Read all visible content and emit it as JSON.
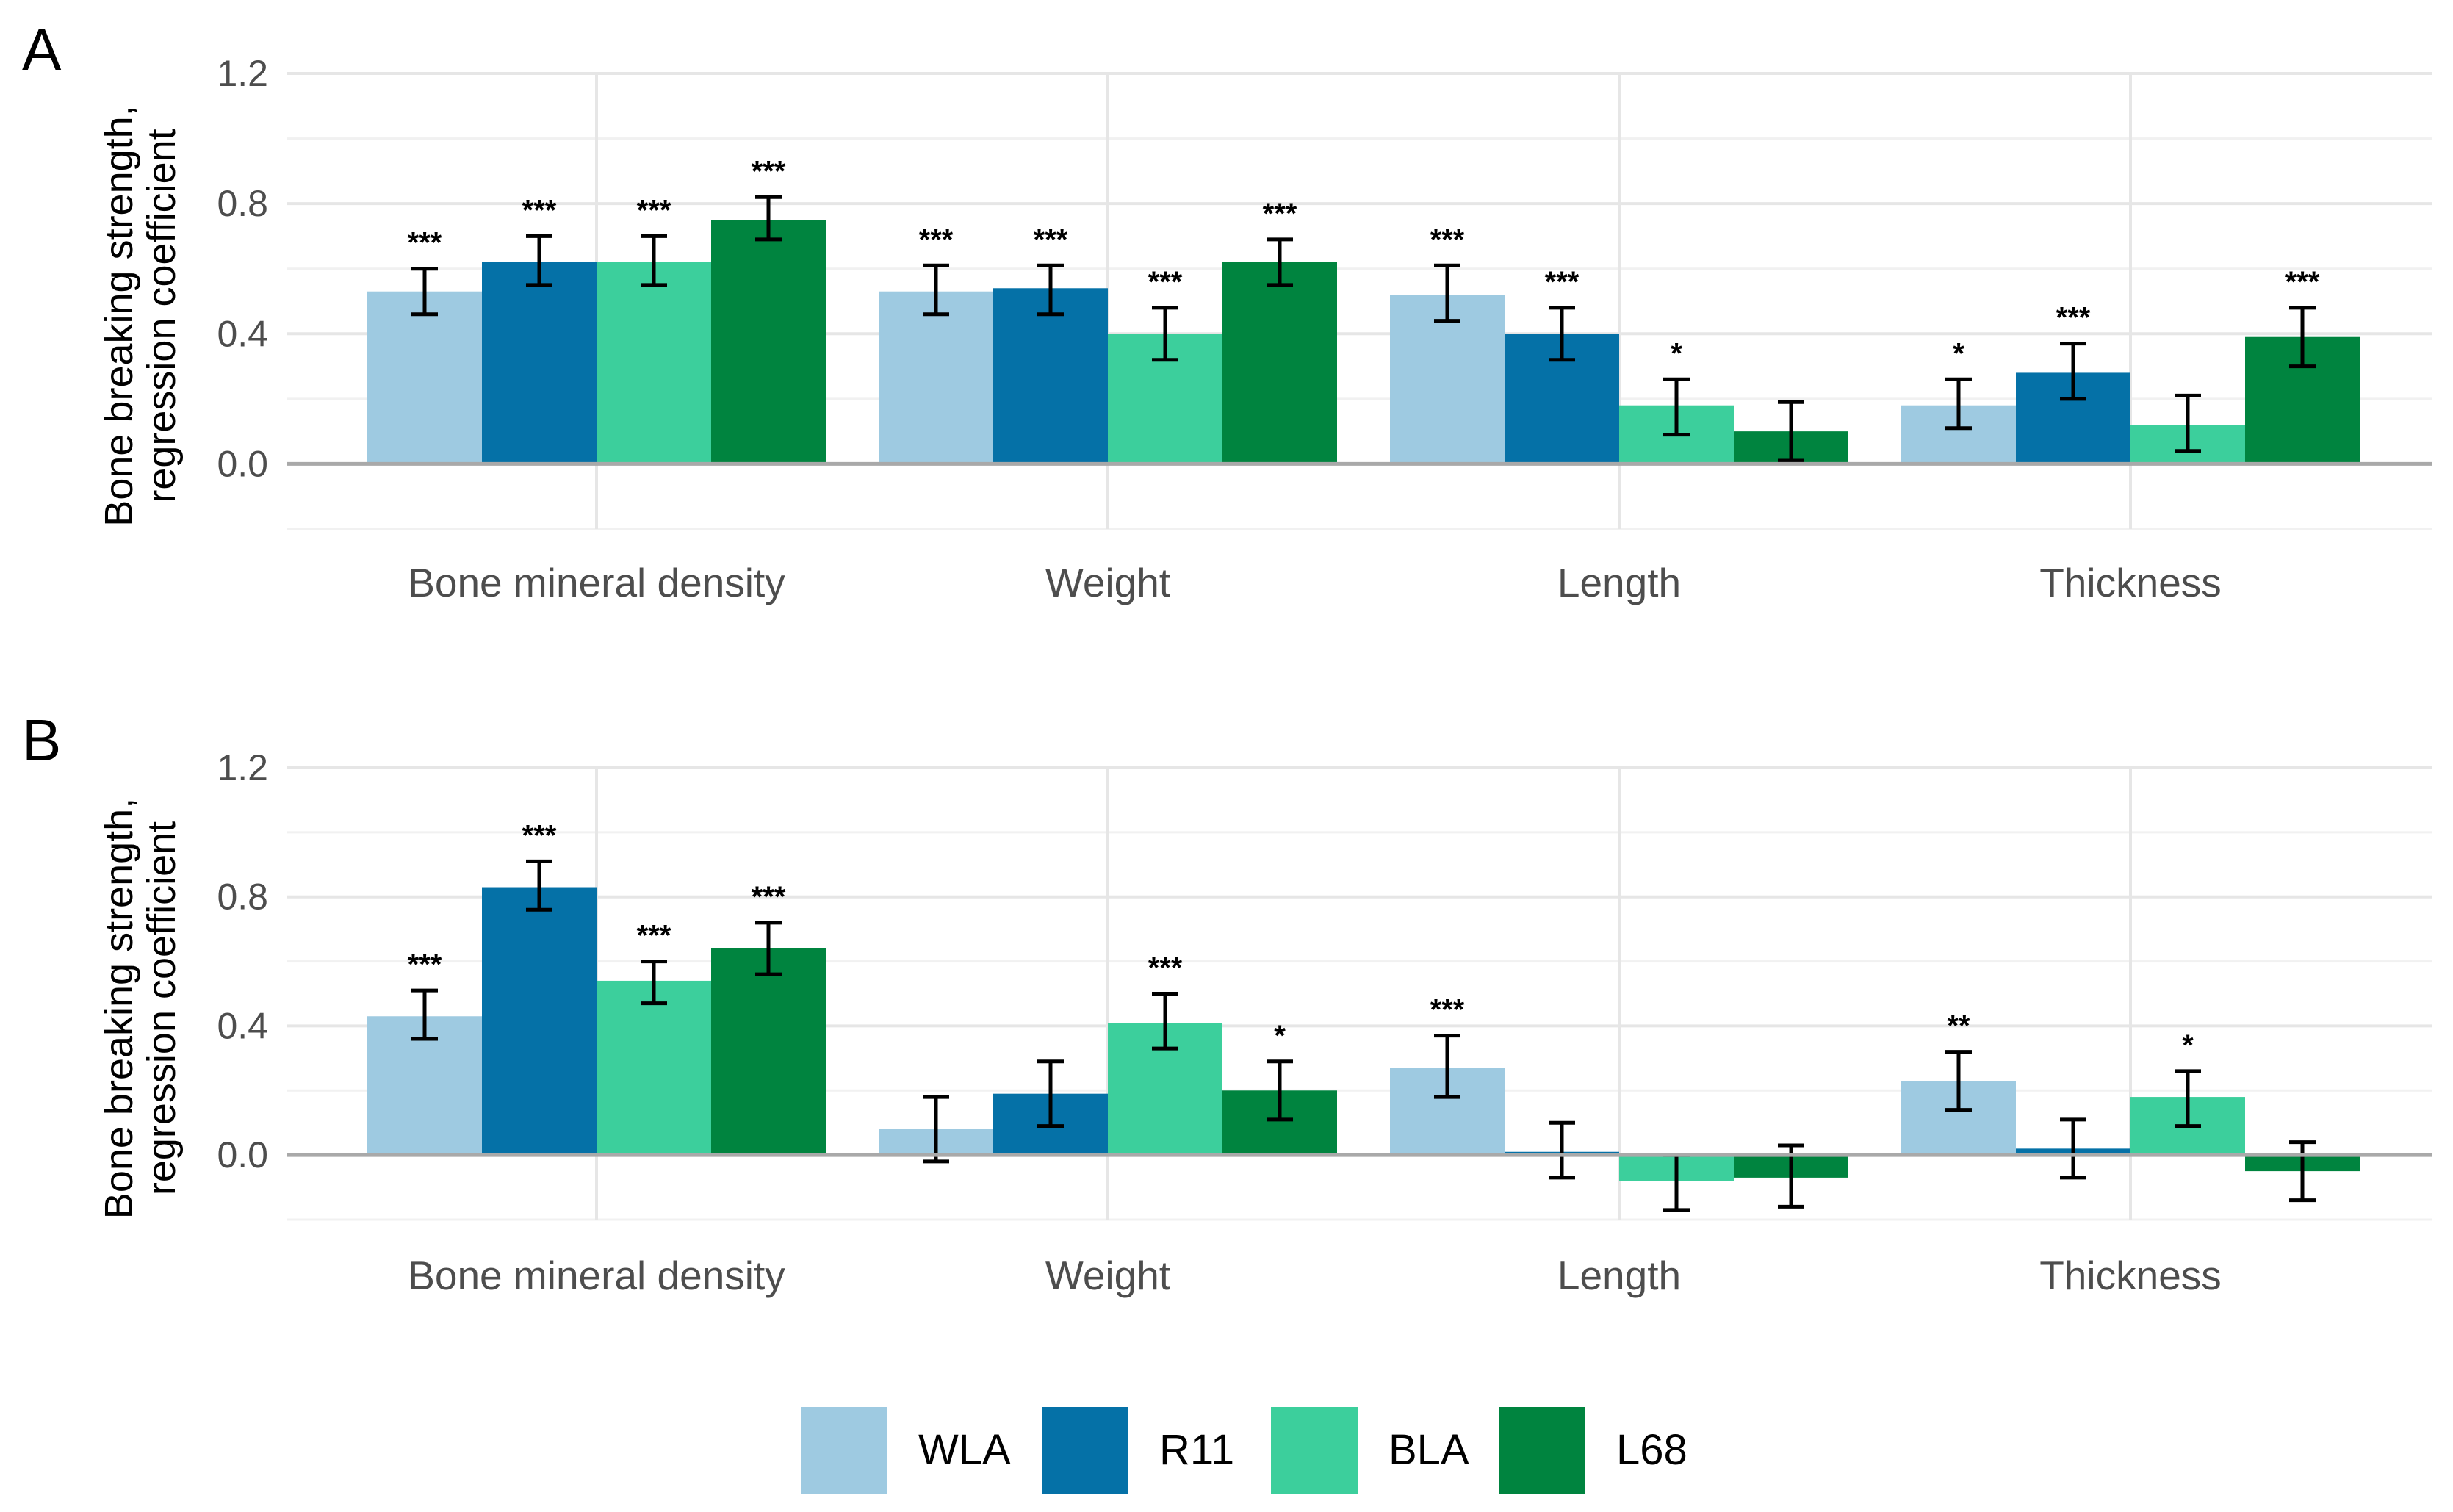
{
  "chart_data": [
    {
      "type": "bar",
      "panel": "A",
      "ylabel_line1": "Bone breaking strength,",
      "ylabel_line2": "regression coefficient",
      "ylim": [
        -0.2,
        1.2
      ],
      "yticks": [
        "0.0",
        "0.4",
        "0.8",
        "1.2"
      ],
      "grid": true,
      "categories": [
        "Bone mineral density",
        "Weight",
        "Length",
        "Thickness"
      ],
      "series": [
        {
          "name": "WLA",
          "values": [
            0.53,
            0.53,
            0.52,
            0.18
          ],
          "err_low": [
            0.46,
            0.46,
            0.44,
            0.11
          ],
          "err_high": [
            0.6,
            0.61,
            0.61,
            0.26
          ],
          "sig": [
            "***",
            "***",
            "***",
            "*"
          ]
        },
        {
          "name": "R11",
          "values": [
            0.62,
            0.54,
            0.4,
            0.28
          ],
          "err_low": [
            0.55,
            0.46,
            0.32,
            0.2
          ],
          "err_high": [
            0.7,
            0.61,
            0.48,
            0.37
          ],
          "sig": [
            "***",
            "***",
            "***",
            "***"
          ]
        },
        {
          "name": "BLA",
          "values": [
            0.62,
            0.4,
            0.18,
            0.12
          ],
          "err_low": [
            0.55,
            0.32,
            0.09,
            0.04
          ],
          "err_high": [
            0.7,
            0.48,
            0.26,
            0.21
          ],
          "sig": [
            "***",
            "***",
            "*",
            ""
          ]
        },
        {
          "name": "L68",
          "values": [
            0.75,
            0.62,
            0.1,
            0.39
          ],
          "err_low": [
            0.69,
            0.55,
            0.01,
            0.3
          ],
          "err_high": [
            0.82,
            0.69,
            0.19,
            0.48
          ],
          "sig": [
            "***",
            "***",
            "",
            "***"
          ]
        }
      ]
    },
    {
      "type": "bar",
      "panel": "B",
      "ylabel_line1": "Bone breaking strength,",
      "ylabel_line2": "regression coefficient",
      "ylim": [
        -0.2,
        1.2
      ],
      "yticks": [
        "0.0",
        "0.4",
        "0.8",
        "1.2"
      ],
      "grid": true,
      "categories": [
        "Bone mineral density",
        "Weight",
        "Length",
        "Thickness"
      ],
      "series": [
        {
          "name": "WLA",
          "values": [
            0.43,
            0.08,
            0.27,
            0.23
          ],
          "err_low": [
            0.36,
            -0.02,
            0.18,
            0.14
          ],
          "err_high": [
            0.51,
            0.18,
            0.37,
            0.32
          ],
          "sig": [
            "***",
            "",
            "***",
            "**"
          ]
        },
        {
          "name": "R11",
          "values": [
            0.83,
            0.19,
            0.01,
            0.02
          ],
          "err_low": [
            0.76,
            0.09,
            -0.07,
            -0.07
          ],
          "err_high": [
            0.91,
            0.29,
            0.1,
            0.11
          ],
          "sig": [
            "***",
            "",
            "",
            ""
          ]
        },
        {
          "name": "BLA",
          "values": [
            0.54,
            0.41,
            -0.08,
            0.18
          ],
          "err_low": [
            0.47,
            0.33,
            -0.17,
            0.09
          ],
          "err_high": [
            0.6,
            0.5,
            0.0,
            0.26
          ],
          "sig": [
            "***",
            "***",
            "",
            "*"
          ]
        },
        {
          "name": "L68",
          "values": [
            0.64,
            0.2,
            -0.07,
            -0.05
          ],
          "err_low": [
            0.56,
            0.11,
            -0.16,
            -0.14
          ],
          "err_high": [
            0.72,
            0.29,
            0.03,
            0.04
          ],
          "sig": [
            "***",
            "*",
            "",
            ""
          ]
        }
      ]
    }
  ],
  "legend": {
    "placement": "bottom",
    "items": [
      {
        "name": "WLA",
        "color": "#9ecae1"
      },
      {
        "name": "R11",
        "color": "#0571a7"
      },
      {
        "name": "BLA",
        "color": "#3ccf9c"
      },
      {
        "name": "L68",
        "color": "#00843f"
      }
    ]
  }
}
